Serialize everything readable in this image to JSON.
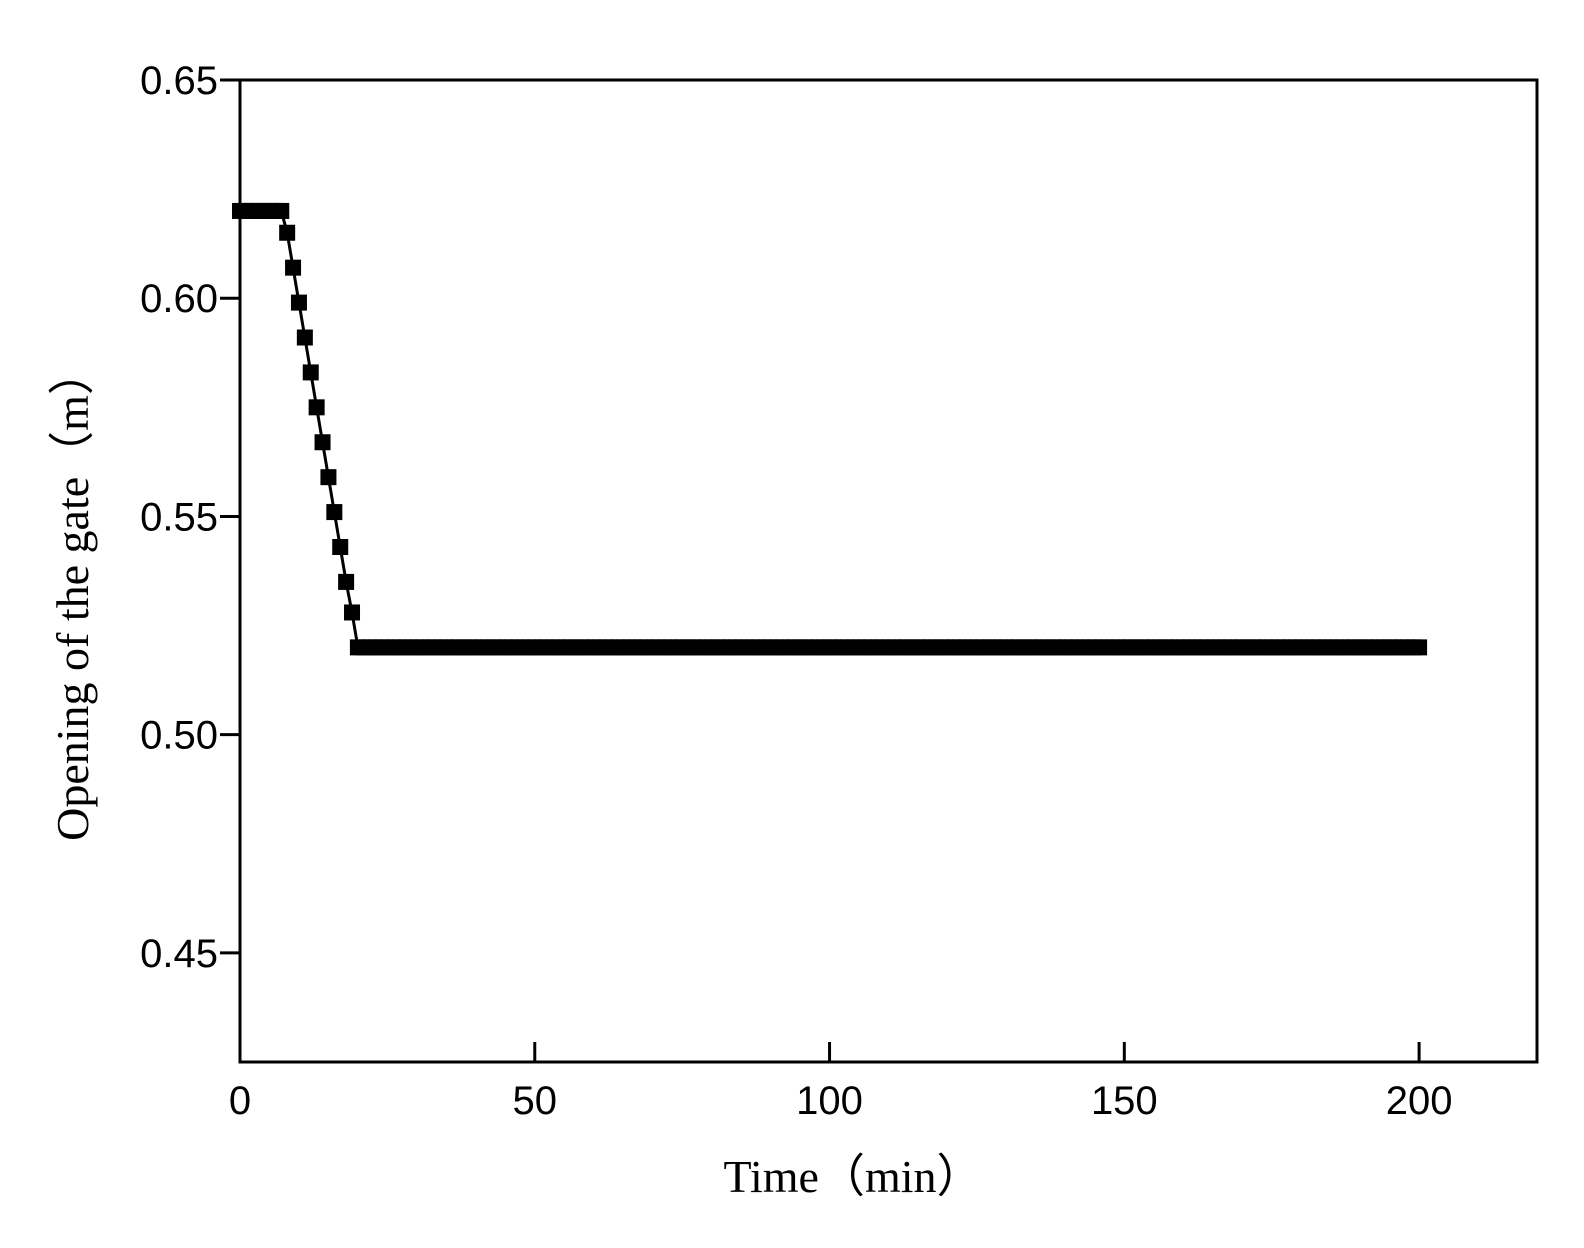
{
  "chart_data": {
    "type": "line",
    "x_label": "Time（min）",
    "y_label": "Opening of the gate（m）",
    "xlim": [
      0,
      220
    ],
    "xticks": [
      0,
      50,
      100,
      150,
      200
    ],
    "ylim": [
      0.425,
      0.65
    ],
    "yticks": [
      0.45,
      {
        "value": 0.5,
        "label": "0.50"
      },
      0.55,
      {
        "value": 0.6,
        "label": "0.60"
      },
      0.65
    ],
    "grid": false,
    "series": [
      {
        "color": "#000000",
        "x": [
          0,
          1,
          2,
          3,
          4,
          5,
          6,
          7,
          8,
          9,
          10,
          11,
          12,
          13,
          14,
          15,
          16,
          17,
          18,
          19,
          20,
          21,
          22,
          23,
          24,
          25,
          26,
          27,
          28,
          29,
          30,
          31,
          32,
          33,
          34,
          35,
          36,
          37,
          38,
          39,
          40,
          41,
          42,
          43,
          44,
          45,
          46,
          47,
          48,
          49,
          50,
          51,
          52,
          53,
          54,
          55,
          56,
          57,
          58,
          59,
          60,
          61,
          62,
          63,
          64,
          65,
          66,
          67,
          68,
          69,
          70,
          71,
          72,
          73,
          74,
          75,
          76,
          77,
          78,
          79,
          80,
          81,
          82,
          83,
          84,
          85,
          86,
          87,
          88,
          89,
          90,
          91,
          92,
          93,
          94,
          95,
          96,
          97,
          98,
          99,
          100,
          101,
          102,
          103,
          104,
          105,
          106,
          107,
          108,
          109,
          110,
          111,
          112,
          113,
          114,
          115,
          116,
          117,
          118,
          119,
          120,
          121,
          122,
          123,
          124,
          125,
          126,
          127,
          128,
          129,
          130,
          131,
          132,
          133,
          134,
          135,
          136,
          137,
          138,
          139,
          140,
          141,
          142,
          143,
          144,
          145,
          146,
          147,
          148,
          149,
          150,
          151,
          152,
          153,
          154,
          155,
          156,
          157,
          158,
          159,
          160,
          161,
          162,
          163,
          164,
          165,
          166,
          167,
          168,
          169,
          170,
          171,
          172,
          173,
          174,
          175,
          176,
          177,
          178,
          179,
          180,
          181,
          182,
          183,
          184,
          185,
          186,
          187,
          188,
          189,
          190,
          191,
          192,
          193,
          194,
          195,
          196,
          197,
          198,
          199,
          200
        ],
        "values": [
          0.62,
          0.62,
          0.62,
          0.62,
          0.62,
          0.62,
          0.62,
          0.62,
          0.615,
          0.607,
          0.599,
          0.591,
          0.583,
          0.575,
          0.567,
          0.559,
          0.551,
          0.543,
          0.535,
          0.528,
          0.52,
          0.52,
          0.52,
          0.52,
          0.52,
          0.52,
          0.52,
          0.52,
          0.52,
          0.52,
          0.52,
          0.52,
          0.52,
          0.52,
          0.52,
          0.52,
          0.52,
          0.52,
          0.52,
          0.52,
          0.52,
          0.52,
          0.52,
          0.52,
          0.52,
          0.52,
          0.52,
          0.52,
          0.52,
          0.52,
          0.52,
          0.52,
          0.52,
          0.52,
          0.52,
          0.52,
          0.52,
          0.52,
          0.52,
          0.52,
          0.52,
          0.52,
          0.52,
          0.52,
          0.52,
          0.52,
          0.52,
          0.52,
          0.52,
          0.52,
          0.52,
          0.52,
          0.52,
          0.52,
          0.52,
          0.52,
          0.52,
          0.52,
          0.52,
          0.52,
          0.52,
          0.52,
          0.52,
          0.52,
          0.52,
          0.52,
          0.52,
          0.52,
          0.52,
          0.52,
          0.52,
          0.52,
          0.52,
          0.52,
          0.52,
          0.52,
          0.52,
          0.52,
          0.52,
          0.52,
          0.52,
          0.52,
          0.52,
          0.52,
          0.52,
          0.52,
          0.52,
          0.52,
          0.52,
          0.52,
          0.52,
          0.52,
          0.52,
          0.52,
          0.52,
          0.52,
          0.52,
          0.52,
          0.52,
          0.52,
          0.52,
          0.52,
          0.52,
          0.52,
          0.52,
          0.52,
          0.52,
          0.52,
          0.52,
          0.52,
          0.52,
          0.52,
          0.52,
          0.52,
          0.52,
          0.52,
          0.52,
          0.52,
          0.52,
          0.52,
          0.52,
          0.52,
          0.52,
          0.52,
          0.52,
          0.52,
          0.52,
          0.52,
          0.52,
          0.52,
          0.52,
          0.52,
          0.52,
          0.52,
          0.52,
          0.52,
          0.52,
          0.52,
          0.52,
          0.52,
          0.52,
          0.52,
          0.52,
          0.52,
          0.52,
          0.52,
          0.52,
          0.52,
          0.52,
          0.52,
          0.52,
          0.52,
          0.52,
          0.52,
          0.52,
          0.52,
          0.52,
          0.52,
          0.52,
          0.52,
          0.52,
          0.52,
          0.52,
          0.52,
          0.52,
          0.52,
          0.52,
          0.52,
          0.52,
          0.52,
          0.52,
          0.52,
          0.52,
          0.52,
          0.52,
          0.52,
          0.52,
          0.52,
          0.52,
          0.52,
          0.52
        ]
      }
    ]
  }
}
